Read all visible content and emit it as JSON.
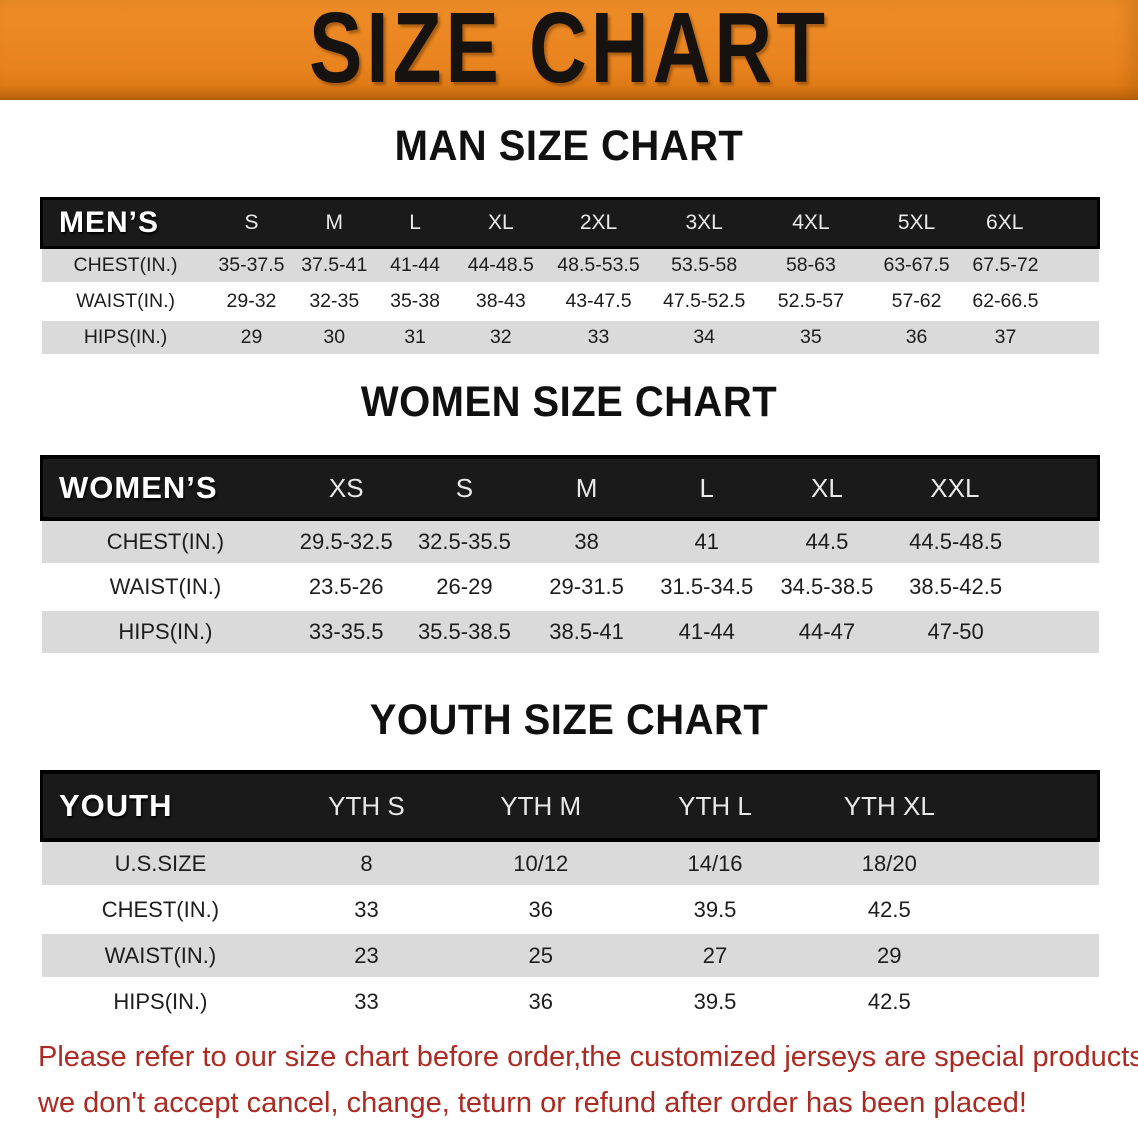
{
  "banner": {
    "title": "SIZE CHART"
  },
  "colors": {
    "banner_orange": "#E8831E",
    "header_black": "#1A1A1A",
    "row_stripe_gray": "#DADADA",
    "footer_red": "#AB2A22"
  },
  "men": {
    "heading": "MAN SIZE CHART",
    "table": {
      "corner": "MEN’S",
      "sizes": [
        "S",
        "M",
        "L",
        "XL",
        "2XL",
        "3XL",
        "4XL",
        "5XL",
        "6XL"
      ],
      "rows": [
        {
          "label": "CHEST(IN.)",
          "values": [
            "35-37.5",
            "37.5-41",
            "41-44",
            "44-48.5",
            "48.5-53.5",
            "53.5-58",
            "58-63",
            "63-67.5",
            "67.5-72"
          ]
        },
        {
          "label": "WAIST(IN.)",
          "values": [
            "29-32",
            "32-35",
            "35-38",
            "38-43",
            "43-47.5",
            "47.5-52.5",
            "52.5-57",
            "57-62",
            "62-66.5"
          ]
        },
        {
          "label": "HIPS(IN.)",
          "values": [
            "29",
            "30",
            "31",
            "32",
            "33",
            "34",
            "35",
            "36",
            "37"
          ]
        }
      ]
    }
  },
  "women": {
    "heading": "WOMEN SIZE CHART",
    "table": {
      "corner": "WOMEN’S",
      "sizes": [
        "XS",
        "S",
        "M",
        "L",
        "XL",
        "XXL"
      ],
      "rows": [
        {
          "label": "CHEST(IN.)",
          "values": [
            "29.5-32.5",
            "32.5-35.5",
            "38",
            "41",
            "44.5",
            "44.5-48.5"
          ]
        },
        {
          "label": "WAIST(IN.)",
          "values": [
            "23.5-26",
            "26-29",
            "29-31.5",
            "31.5-34.5",
            "34.5-38.5",
            "38.5-42.5"
          ]
        },
        {
          "label": "HIPS(IN.)",
          "values": [
            "33-35.5",
            "35.5-38.5",
            "38.5-41",
            "41-44",
            "44-47",
            "47-50"
          ]
        }
      ]
    }
  },
  "youth": {
    "heading": "YOUTH SIZE CHART",
    "table": {
      "corner": "YOUTH",
      "sizes": [
        "YTH S",
        "YTH M",
        "YTH L",
        "YTH XL"
      ],
      "rows": [
        {
          "label": "U.S.SIZE",
          "values": [
            "8",
            "10/12",
            "14/16",
            "18/20"
          ]
        },
        {
          "label": "CHEST(IN.)",
          "values": [
            "33",
            "36",
            "39.5",
            "42.5"
          ]
        },
        {
          "label": "WAIST(IN.)",
          "values": [
            "23",
            "25",
            "27",
            "29"
          ]
        },
        {
          "label": "HIPS(IN.)",
          "values": [
            "33",
            "36",
            "39.5",
            "42.5"
          ]
        }
      ]
    }
  },
  "footer": {
    "line1": "Please refer to our size chart before order,the customized jerseys are special products,",
    "line2": "we don't accept cancel, change, teturn or refund after order has been placed!"
  }
}
